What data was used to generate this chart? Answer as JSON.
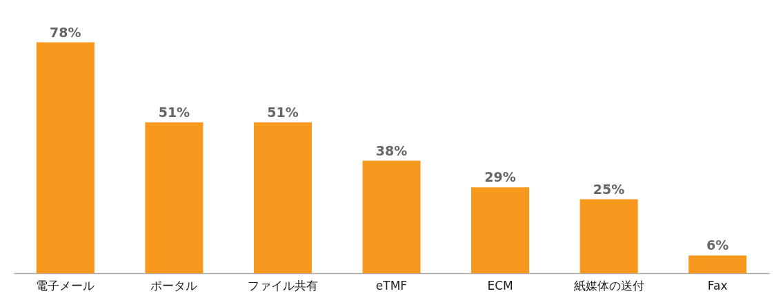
{
  "chart_data": {
    "type": "bar",
    "categories": [
      "電子メール",
      "ポータル",
      "ファイル共有",
      "eTMF",
      "ECM",
      "紙媒体の送付",
      "Fax"
    ],
    "values": [
      78,
      51,
      51,
      38,
      29,
      25,
      6
    ],
    "value_labels": [
      "78%",
      "51%",
      "51%",
      "38%",
      "29%",
      "25%",
      "6%"
    ],
    "color": "#f7991f",
    "grid": false
  }
}
